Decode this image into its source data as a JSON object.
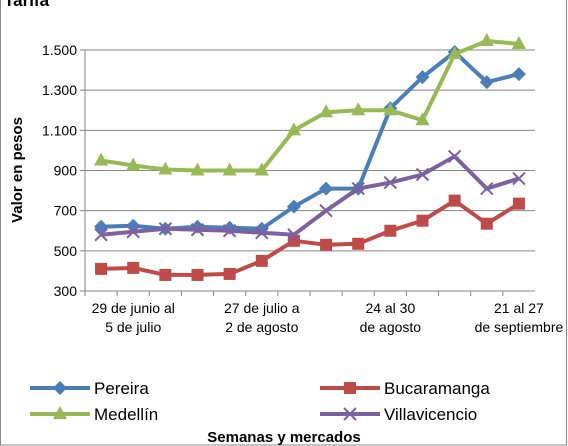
{
  "chart_data": {
    "type": "line",
    "title": "Tarifa",
    "y_label": "Valor en pesos",
    "x_label": "Semanas y mercados",
    "categories": [
      null,
      "29 de junio al 5 de julio",
      null,
      null,
      null,
      "27 de julio a 2 de agosto",
      null,
      null,
      null,
      "24 al 30 de agosto",
      null,
      null,
      null,
      "21 al 27 de septiembre"
    ],
    "series": [
      {
        "name": "Pereira",
        "color": "#4a7ebb",
        "marker": "diamond",
        "values": [
          620,
          625,
          610,
          620,
          615,
          610,
          720,
          810,
          810,
          1210,
          1365,
          1490,
          1340,
          1380
        ]
      },
      {
        "name": "Bucaramanga",
        "color": "#be4b48",
        "marker": "square",
        "values": [
          410,
          415,
          380,
          380,
          385,
          450,
          550,
          530,
          535,
          600,
          650,
          750,
          635,
          735
        ]
      },
      {
        "name": "Medellín",
        "color": "#98b954",
        "marker": "triangle",
        "values": [
          950,
          925,
          905,
          900,
          900,
          900,
          1100,
          1190,
          1200,
          1200,
          1150,
          1480,
          1545,
          1530
        ]
      },
      {
        "name": "Villavicencio",
        "color": "#7d60a0",
        "marker": "x",
        "values": [
          580,
          595,
          610,
          605,
          600,
          590,
          580,
          700,
          810,
          840,
          880,
          970,
          810,
          860
        ]
      }
    ],
    "ylim": [
      300,
      1500
    ],
    "yticks": [
      300,
      500,
      700,
      900,
      {
        "value": 1100,
        "label": "1.100"
      },
      {
        "value": 1300,
        "label": "1.300"
      },
      {
        "value": 1500,
        "label": "1.500"
      }
    ],
    "grid": true
  }
}
